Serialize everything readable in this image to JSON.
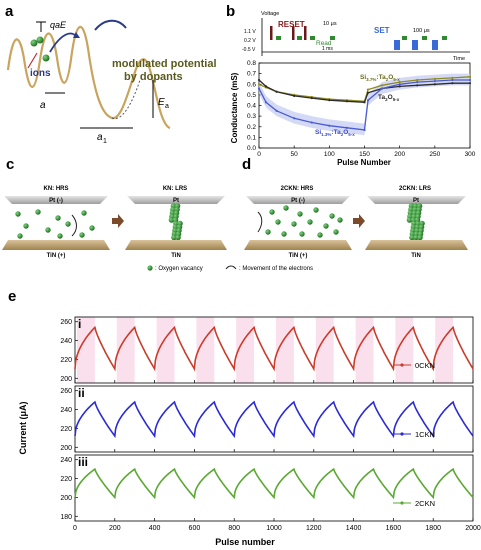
{
  "panels": {
    "a": {
      "letter": "a",
      "label_qaE": "qaE",
      "label_ions": "ions",
      "label_a": "a",
      "label_a1": "a",
      "label_a1_sub": "1",
      "label_Ea": "E",
      "label_Ea_sub": "a",
      "modulated_line1": "modulated potential",
      "modulated_line2": "by dopants"
    },
    "b": {
      "letter": "b",
      "voltage_axis": "Voltage",
      "v_levels": [
        "1.1 V",
        "0.2 V",
        "-0.5 V"
      ],
      "reset": "RESET",
      "read": "Read",
      "pulse_10us": "10 μs",
      "pulse_1ms": "1 ms",
      "set": "SET",
      "pulse_100us": "100 μs",
      "time": "Time",
      "ylabel": "Conductance (mS)",
      "xlabel": "Pulse Number",
      "series_si_upper": "Si",
      "series_si_upper_sub": "3.7%",
      "series_si_upper_tail": ":Ta",
      "series_ta": "Ta",
      "series_si_lower": "Si",
      "series_si_lower_sub": "1.3%",
      "ta2o5_sub_2": "2",
      "ta2o5_o": "O",
      "ta2o5_sub_5": "5-x"
    },
    "c": {
      "letter": "c",
      "left_title": "KN: HRS",
      "right_title": "KN: LRS",
      "left_top": "Pt (-)",
      "right_top": "Pt",
      "left_bottom": "TiN (+)",
      "right_bottom": "TiN"
    },
    "d": {
      "letter": "d",
      "left_title": "2CKN: HRS",
      "right_title": "2CKN: LRS",
      "left_top": "Pt (-)",
      "right_top": "Pt",
      "left_bottom": "TiN (+)",
      "right_bottom": "TiN"
    },
    "legend": {
      "oxygen": ": Oxygen vacancy",
      "electrons": ": Movement of the electrons"
    },
    "e": {
      "letter": "e",
      "ylabel": "Current (μA)",
      "xlabel": "Pulse number",
      "subpanels": [
        "i",
        "ii",
        "iii"
      ],
      "legend_names": [
        "0CKN",
        "1CKN",
        "2CKN"
      ]
    }
  },
  "colors": {
    "wave": "#c9a45e",
    "ion": "#2e8b2e",
    "si37": "#8f8a1e",
    "ta2o5": "#2c2c2c",
    "si13": "#4a5bd6",
    "band": "#c6cdf3",
    "pink_band": "#f5c7df",
    "red_curve": "#cc3a2a",
    "blue_curve": "#2a2ad8",
    "green_curve": "#5aa832",
    "pt_plate": "#c7c7c7",
    "tin_plate": "#b89868"
  },
  "chart_data": [
    {
      "type": "line",
      "title": "",
      "xlabel": "Pulse Number",
      "ylabel": "Conductance (mS)",
      "xlim": [
        0,
        300
      ],
      "ylim": [
        0.0,
        0.8
      ],
      "xticks": [
        0,
        50,
        100,
        150,
        200,
        250,
        300
      ],
      "yticks": [
        0.0,
        0.1,
        0.2,
        0.3,
        0.4,
        0.5,
        0.6,
        0.7,
        0.8
      ],
      "series": [
        {
          "name": "Si3.7%:Ta2O5-x",
          "x": [
            0,
            10,
            25,
            50,
            75,
            100,
            125,
            150,
            155,
            175,
            200,
            225,
            250,
            275,
            300
          ],
          "values": [
            0.6,
            0.57,
            0.53,
            0.5,
            0.48,
            0.46,
            0.45,
            0.44,
            0.55,
            0.59,
            0.62,
            0.64,
            0.65,
            0.66,
            0.67
          ]
        },
        {
          "name": "Ta2O5-x",
          "x": [
            0,
            10,
            25,
            50,
            75,
            100,
            125,
            150,
            155,
            175,
            200,
            225,
            250,
            275,
            300
          ],
          "values": [
            0.64,
            0.58,
            0.53,
            0.49,
            0.47,
            0.45,
            0.44,
            0.43,
            0.52,
            0.56,
            0.58,
            0.59,
            0.6,
            0.61,
            0.61
          ]
        },
        {
          "name": "Si1.3%:Ta2O5-x",
          "x": [
            0,
            10,
            25,
            50,
            75,
            100,
            125,
            150,
            155,
            175,
            200,
            225,
            250,
            275,
            300
          ],
          "values": [
            0.56,
            0.43,
            0.35,
            0.28,
            0.24,
            0.21,
            0.19,
            0.17,
            0.45,
            0.56,
            0.6,
            0.62,
            0.63,
            0.64,
            0.64
          ]
        }
      ]
    },
    {
      "type": "line",
      "title": "",
      "xlabel": "Pulse number",
      "ylabel": "Current (μA)",
      "xlim": [
        0,
        2000
      ],
      "xticks": [
        0,
        200,
        400,
        600,
        800,
        1000,
        1200,
        1400,
        1600,
        1800,
        2000
      ],
      "subplots": [
        {
          "label": "i",
          "name": "0CKN",
          "ylim": [
            195,
            265
          ],
          "yticks": [
            200,
            220,
            240,
            260
          ],
          "low": 210,
          "high": 254,
          "period": 200,
          "peak": 100
        },
        {
          "label": "ii",
          "name": "1CKN",
          "ylim": [
            195,
            265
          ],
          "yticks": [
            200,
            220,
            240,
            260
          ],
          "low": 212,
          "high": 248,
          "period": 200,
          "peak": 100
        },
        {
          "label": "iii",
          "name": "2CKN",
          "ylim": [
            175,
            245
          ],
          "yticks": [
            180,
            200,
            220,
            240
          ],
          "low": 200,
          "high": 230,
          "period": 200,
          "peak": 100
        }
      ]
    }
  ]
}
